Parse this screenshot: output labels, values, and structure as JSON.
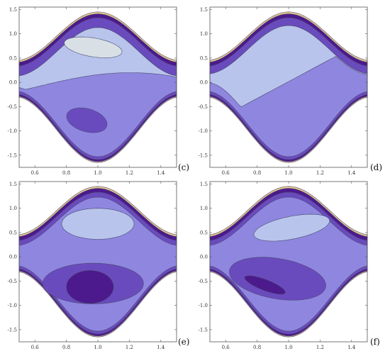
{
  "palette": {
    "deep": "#4c1a8c",
    "dark": "#6a4bbd",
    "mid": "#8f86e0",
    "light": "#b8c4ec",
    "pale": "#d8e0e6",
    "edge": "#e6c890"
  },
  "chart_data": [
    {
      "type": "contour",
      "panel_label": "(c)",
      "x_ticks": [
        "0.6",
        "0.8",
        "1.0",
        "1.2",
        "1.4"
      ],
      "y_ticks": [
        "1.5",
        "1.0",
        "0.5",
        "0.0",
        "-0.5",
        "-1.0",
        "-1.5"
      ],
      "xlim": [
        0.5,
        1.5
      ],
      "ylim": [
        -1.75,
        1.55
      ]
    },
    {
      "type": "contour",
      "panel_label": "(d)",
      "x_ticks": [
        "0.6",
        "0.8",
        "1.0",
        "1.2",
        "1.4"
      ],
      "y_ticks": [
        "1.5",
        "1.0",
        "0.5",
        "0.0",
        "-0.5",
        "-1.0",
        "-1.5"
      ],
      "xlim": [
        0.5,
        1.5
      ],
      "ylim": [
        -1.75,
        1.55
      ]
    },
    {
      "type": "contour",
      "panel_label": "(e)",
      "x_ticks": [
        "0.6",
        "0.8",
        "1.0",
        "1.2",
        "1.4"
      ],
      "y_ticks": [
        "1.5",
        "1.0",
        "0.5",
        "0.0",
        "-0.5",
        "-1.0",
        "-1.5"
      ],
      "xlim": [
        0.5,
        1.5
      ],
      "ylim": [
        -1.75,
        1.55
      ]
    },
    {
      "type": "contour",
      "panel_label": "(f)",
      "x_ticks": [
        "0.6",
        "0.8",
        "1.0",
        "1.2",
        "1.4"
      ],
      "y_ticks": [
        "1.5",
        "1.0",
        "0.5",
        "0.0",
        "-0.5",
        "-1.0",
        "-1.5"
      ],
      "xlim": [
        0.5,
        1.5
      ],
      "ylim": [
        -1.75,
        1.55
      ]
    }
  ]
}
